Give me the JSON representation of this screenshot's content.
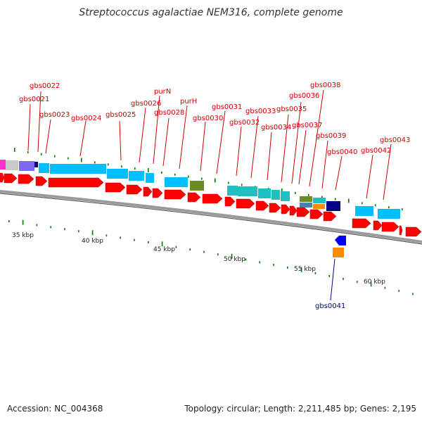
{
  "title": "Streptococcus agalactiae NEM316, complete genome",
  "footer": {
    "accession": "Accession: NC_004368",
    "summary": "Topology: circular; Length: 2,211,485 bp; Genes: 2,195"
  },
  "colors": {
    "forward_cds": "#ff0000",
    "reverse_cds": "#00c0ff",
    "label_forward": "#cc0000",
    "label_reverse": "#00008b",
    "backbone": "#808080",
    "tick": "#007a00"
  },
  "kbp_labels": [
    "35 kbp",
    "40 kbp",
    "45 kbp",
    "50 kbp",
    "55 kbp",
    "60 kbp"
  ],
  "gene_labels": [
    {
      "name": "gbs0021",
      "strand": "reverse"
    },
    {
      "name": "gbs0022",
      "strand": "reverse"
    },
    {
      "name": "gbs0023",
      "strand": "reverse"
    },
    {
      "name": "gbs0024",
      "strand": "reverse"
    },
    {
      "name": "gbs0025",
      "strand": "reverse"
    },
    {
      "name": "gbs0026",
      "strand": "reverse"
    },
    {
      "name": "purN",
      "strand": "reverse"
    },
    {
      "name": "gbs0028",
      "strand": "reverse"
    },
    {
      "name": "purH",
      "strand": "reverse"
    },
    {
      "name": "gbs0030",
      "strand": "reverse"
    },
    {
      "name": "gbs0031",
      "strand": "reverse"
    },
    {
      "name": "gbs0032",
      "strand": "reverse"
    },
    {
      "name": "gbs0033",
      "strand": "reverse"
    },
    {
      "name": "gbs0034",
      "strand": "reverse"
    },
    {
      "name": "gbs0035",
      "strand": "reverse"
    },
    {
      "name": "gbs0036",
      "strand": "reverse"
    },
    {
      "name": "gbs0037",
      "strand": "reverse"
    },
    {
      "name": "gbs0038",
      "strand": "reverse"
    },
    {
      "name": "gbs0039",
      "strand": "reverse"
    },
    {
      "name": "gbs0040",
      "strand": "reverse"
    },
    {
      "name": "gbs0042",
      "strand": "reverse"
    },
    {
      "name": "gbs0043",
      "strand": "reverse"
    },
    {
      "name": "gbs0041",
      "strand": "inner"
    }
  ]
}
